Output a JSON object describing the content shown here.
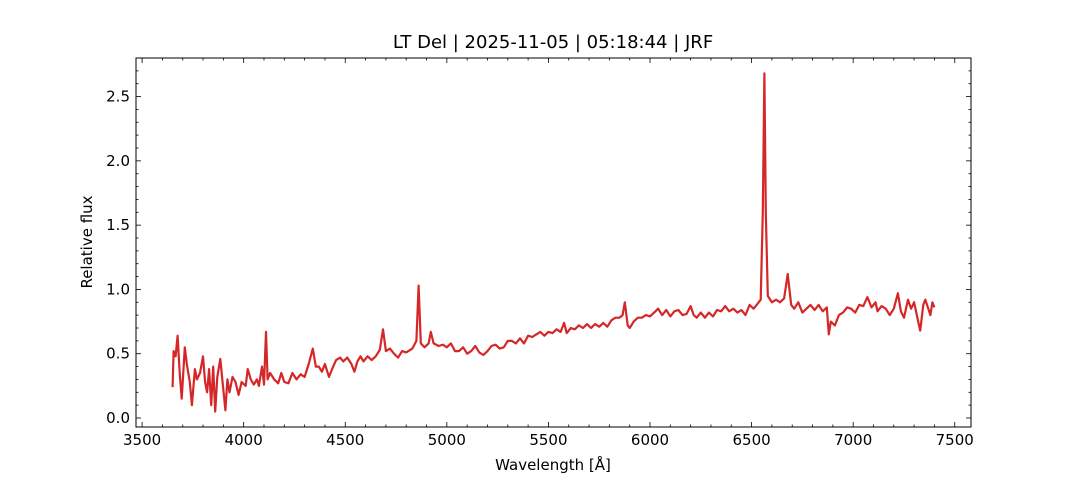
{
  "chart_data": {
    "type": "line",
    "title": "LT Del | 2025-11-05 | 05:18:44 | JRF",
    "xlabel": "Wavelength [Å]",
    "ylabel": "Relative flux",
    "xlim": [
      3470,
      7580
    ],
    "ylim": [
      -0.07,
      2.8
    ],
    "xticks": [
      3500,
      4000,
      4500,
      5000,
      5500,
      6000,
      6500,
      7000,
      7500
    ],
    "yticks": [
      0.0,
      0.5,
      1.0,
      1.5,
      2.0,
      2.5
    ],
    "xtick_labels": [
      "3500",
      "4000",
      "4500",
      "5000",
      "5500",
      "6000",
      "6500",
      "7000",
      "7500"
    ],
    "ytick_labels": [
      "0.0",
      "0.5",
      "1.0",
      "1.5",
      "2.0",
      "2.5"
    ],
    "grid": false,
    "line_color": "#d62728",
    "series": [
      {
        "x": [
          3650,
          3655,
          3665,
          3675,
          3685,
          3695,
          3710,
          3720,
          3735,
          3745,
          3760,
          3770,
          3785,
          3800,
          3810,
          3820,
          3830,
          3840,
          3850,
          3860,
          3870,
          3885,
          3895,
          3910,
          3920,
          3930,
          3945,
          3960,
          3975,
          3990,
          4010,
          4020,
          4035,
          4050,
          4065,
          4075,
          4090,
          4100,
          4110,
          4118,
          4130,
          4150,
          4170,
          4185,
          4200,
          4220,
          4240,
          4260,
          4280,
          4300,
          4320,
          4340,
          4355,
          4370,
          4385,
          4400,
          4420,
          4435,
          4455,
          4475,
          4490,
          4510,
          4530,
          4545,
          4560,
          4575,
          4590,
          4610,
          4630,
          4650,
          4670,
          4686,
          4700,
          4720,
          4740,
          4760,
          4780,
          4800,
          4830,
          4850,
          4861,
          4872,
          4890,
          4910,
          4921,
          4935,
          4960,
          4980,
          5000,
          5020,
          5040,
          5060,
          5080,
          5100,
          5120,
          5140,
          5160,
          5180,
          5200,
          5220,
          5240,
          5260,
          5280,
          5300,
          5320,
          5340,
          5360,
          5380,
          5400,
          5420,
          5440,
          5460,
          5480,
          5500,
          5520,
          5540,
          5560,
          5577,
          5590,
          5610,
          5630,
          5650,
          5670,
          5690,
          5710,
          5730,
          5750,
          5770,
          5790,
          5810,
          5830,
          5850,
          5865,
          5876,
          5890,
          5900,
          5920,
          5940,
          5960,
          5980,
          6000,
          6020,
          6040,
          6060,
          6080,
          6100,
          6120,
          6140,
          6160,
          6180,
          6200,
          6215,
          6230,
          6250,
          6270,
          6290,
          6310,
          6330,
          6350,
          6370,
          6390,
          6410,
          6430,
          6450,
          6470,
          6490,
          6510,
          6530,
          6545,
          6555,
          6563,
          6570,
          6580,
          6600,
          6620,
          6640,
          6660,
          6678,
          6695,
          6710,
          6730,
          6750,
          6770,
          6790,
          6810,
          6830,
          6850,
          6870,
          6880,
          6890,
          6910,
          6930,
          6950,
          6970,
          6990,
          7010,
          7030,
          7050,
          7070,
          7090,
          7110,
          7120,
          7140,
          7160,
          7180,
          7200,
          7220,
          7235,
          7250,
          7270,
          7285,
          7300,
          7320,
          7330,
          7345,
          7355,
          7370,
          7380,
          7390,
          7400
        ],
        "y": [
          0.24,
          0.52,
          0.48,
          0.64,
          0.35,
          0.15,
          0.55,
          0.42,
          0.28,
          0.1,
          0.38,
          0.3,
          0.35,
          0.48,
          0.28,
          0.2,
          0.38,
          0.1,
          0.4,
          0.05,
          0.32,
          0.46,
          0.3,
          0.06,
          0.3,
          0.2,
          0.32,
          0.28,
          0.18,
          0.28,
          0.25,
          0.38,
          0.3,
          0.26,
          0.3,
          0.25,
          0.4,
          0.26,
          0.67,
          0.3,
          0.35,
          0.3,
          0.27,
          0.35,
          0.28,
          0.27,
          0.35,
          0.3,
          0.34,
          0.32,
          0.42,
          0.54,
          0.4,
          0.4,
          0.36,
          0.42,
          0.32,
          0.38,
          0.45,
          0.47,
          0.44,
          0.47,
          0.42,
          0.36,
          0.44,
          0.48,
          0.44,
          0.48,
          0.45,
          0.48,
          0.53,
          0.69,
          0.52,
          0.54,
          0.5,
          0.47,
          0.52,
          0.51,
          0.54,
          0.6,
          1.03,
          0.58,
          0.55,
          0.58,
          0.67,
          0.58,
          0.56,
          0.57,
          0.55,
          0.58,
          0.52,
          0.52,
          0.55,
          0.5,
          0.52,
          0.56,
          0.51,
          0.49,
          0.52,
          0.56,
          0.57,
          0.54,
          0.55,
          0.6,
          0.6,
          0.58,
          0.62,
          0.58,
          0.64,
          0.63,
          0.65,
          0.67,
          0.64,
          0.67,
          0.66,
          0.69,
          0.67,
          0.74,
          0.66,
          0.7,
          0.69,
          0.72,
          0.7,
          0.73,
          0.7,
          0.73,
          0.71,
          0.74,
          0.71,
          0.76,
          0.78,
          0.78,
          0.8,
          0.9,
          0.72,
          0.7,
          0.75,
          0.78,
          0.78,
          0.8,
          0.79,
          0.82,
          0.85,
          0.8,
          0.84,
          0.79,
          0.83,
          0.84,
          0.8,
          0.81,
          0.87,
          0.8,
          0.78,
          0.82,
          0.78,
          0.82,
          0.79,
          0.84,
          0.83,
          0.87,
          0.83,
          0.85,
          0.82,
          0.84,
          0.8,
          0.88,
          0.85,
          0.89,
          0.92,
          1.6,
          2.68,
          1.6,
          0.95,
          0.9,
          0.92,
          0.9,
          0.93,
          1.12,
          0.88,
          0.85,
          0.9,
          0.82,
          0.85,
          0.88,
          0.84,
          0.88,
          0.83,
          0.86,
          0.65,
          0.75,
          0.72,
          0.8,
          0.82,
          0.86,
          0.85,
          0.82,
          0.88,
          0.87,
          0.94,
          0.86,
          0.9,
          0.83,
          0.87,
          0.85,
          0.8,
          0.85,
          0.97,
          0.83,
          0.78,
          0.92,
          0.85,
          0.9,
          0.75,
          0.68,
          0.88,
          0.92,
          0.85,
          0.8,
          0.9,
          0.86
        ]
      }
    ]
  }
}
